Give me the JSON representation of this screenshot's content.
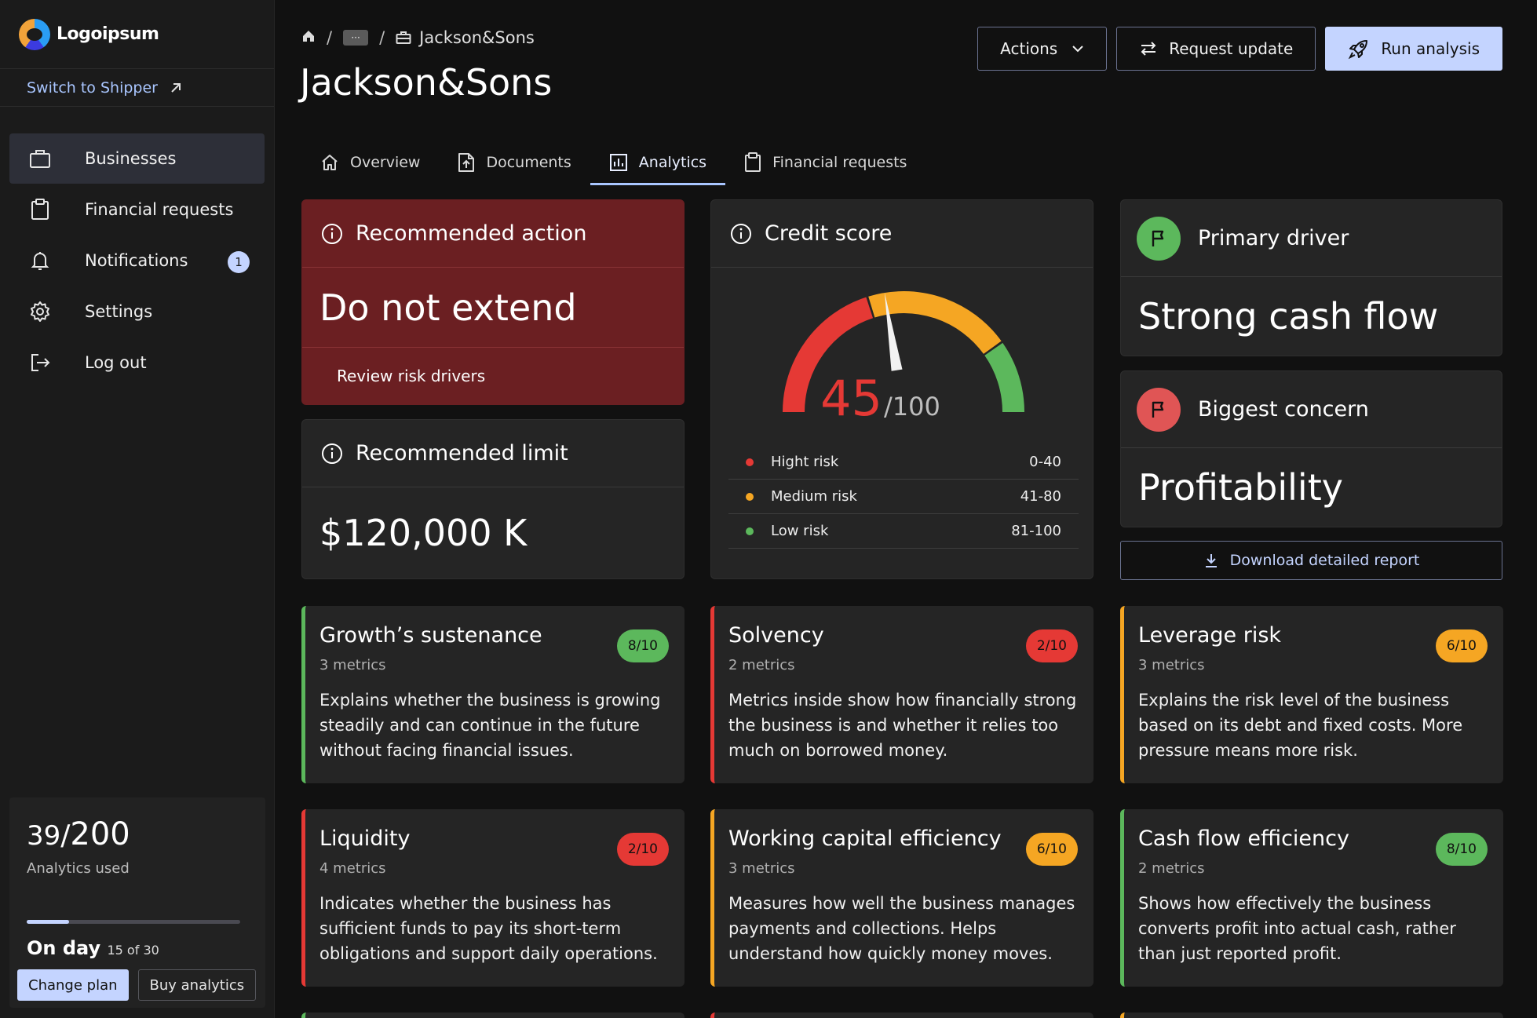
{
  "brand": {
    "name": "Logoipsum"
  },
  "sidebar": {
    "switch_label": "Switch to Shipper",
    "items": [
      {
        "label": "Businesses",
        "icon": "briefcase-icon",
        "active": true
      },
      {
        "label": "Financial requests",
        "icon": "clipboard-icon"
      },
      {
        "label": "Notifications",
        "icon": "bell-icon",
        "badge": "1"
      },
      {
        "label": "Settings",
        "icon": "gear-icon"
      },
      {
        "label": "Log out",
        "icon": "logout-icon"
      }
    ],
    "usage": {
      "used": "39",
      "slash": "/",
      "total": "200",
      "label": "Analytics used",
      "progress": 0.2,
      "day_label": "On day",
      "day_value": "15 of 30",
      "change_plan": "Change plan",
      "buy_analytics": "Buy analytics"
    }
  },
  "header": {
    "breadcrumb": {
      "sep": "/",
      "more": "···",
      "current": "Jackson&Sons"
    },
    "title": "Jackson&Sons",
    "actions_label": "Actions",
    "request_label": "Request update",
    "run_label": "Run analysis"
  },
  "tabs": [
    {
      "label": "Overview",
      "icon": "home-icon"
    },
    {
      "label": "Documents",
      "icon": "document-upload-icon"
    },
    {
      "label": "Analytics",
      "icon": "bar-chart-icon",
      "active": true
    },
    {
      "label": "Financial requests",
      "icon": "clipboard-icon"
    }
  ],
  "recommended_action": {
    "title": "Recommended action",
    "value": "Do not extend",
    "link": "Review risk drivers"
  },
  "recommended_limit": {
    "title": "Recommended limit",
    "value": "$120,000 K"
  },
  "credit_score": {
    "title": "Credit score",
    "score": "45",
    "max": "/100",
    "score_value": 45,
    "legend": [
      {
        "label": "Hight risk",
        "range": "0-40",
        "color": "#e53935"
      },
      {
        "label": "Medium risk",
        "range": "41-80",
        "color": "#f5a623"
      },
      {
        "label": "Low risk",
        "range": "81-100",
        "color": "#5cb85c"
      }
    ]
  },
  "primary_driver": {
    "title": "Primary driver",
    "value": "Strong cash flow",
    "color": "#5cb85c"
  },
  "biggest_concern": {
    "title": "Biggest concern",
    "value": "Profitability",
    "color": "#e05555"
  },
  "download_label": "Download detailed report",
  "colors": {
    "green": "#5cb85c",
    "red": "#e53935",
    "orange": "#f5a623",
    "accent": "#c4d4ff"
  },
  "metrics": [
    {
      "title": "Growth’s sustenance",
      "sub": "3 metrics",
      "score": "8/10",
      "color": "#5cb85c",
      "desc": "Explains whether the business is growing steadily and can continue in the future without facing financial issues."
    },
    {
      "title": "Solvency",
      "sub": "2 metrics",
      "score": "2/10",
      "color": "#e53935",
      "desc": "Metrics inside show how financially strong the business is and whether it relies too much on borrowed money."
    },
    {
      "title": "Leverage risk",
      "sub": "3 metrics",
      "score": "6/10",
      "color": "#f5a623",
      "desc": "Explains the risk level of the business based on its debt and fixed costs. More pressure means more risk."
    },
    {
      "title": "Liquidity",
      "sub": "4 metrics",
      "score": "2/10",
      "color": "#e53935",
      "desc": "Indicates whether the business has sufficient funds to pay its short-term obligations and support daily operations."
    },
    {
      "title": "Working capital efficiency",
      "sub": "3 metrics",
      "score": "6/10",
      "color": "#f5a623",
      "desc": "Measures how well the business manages payments and collections. Helps understand how quickly money moves."
    },
    {
      "title": "Cash flow efficiency",
      "sub": "2 metrics",
      "score": "8/10",
      "color": "#5cb85c",
      "desc": "Shows how effectively the business converts profit into actual cash, rather than just reported profit."
    }
  ]
}
